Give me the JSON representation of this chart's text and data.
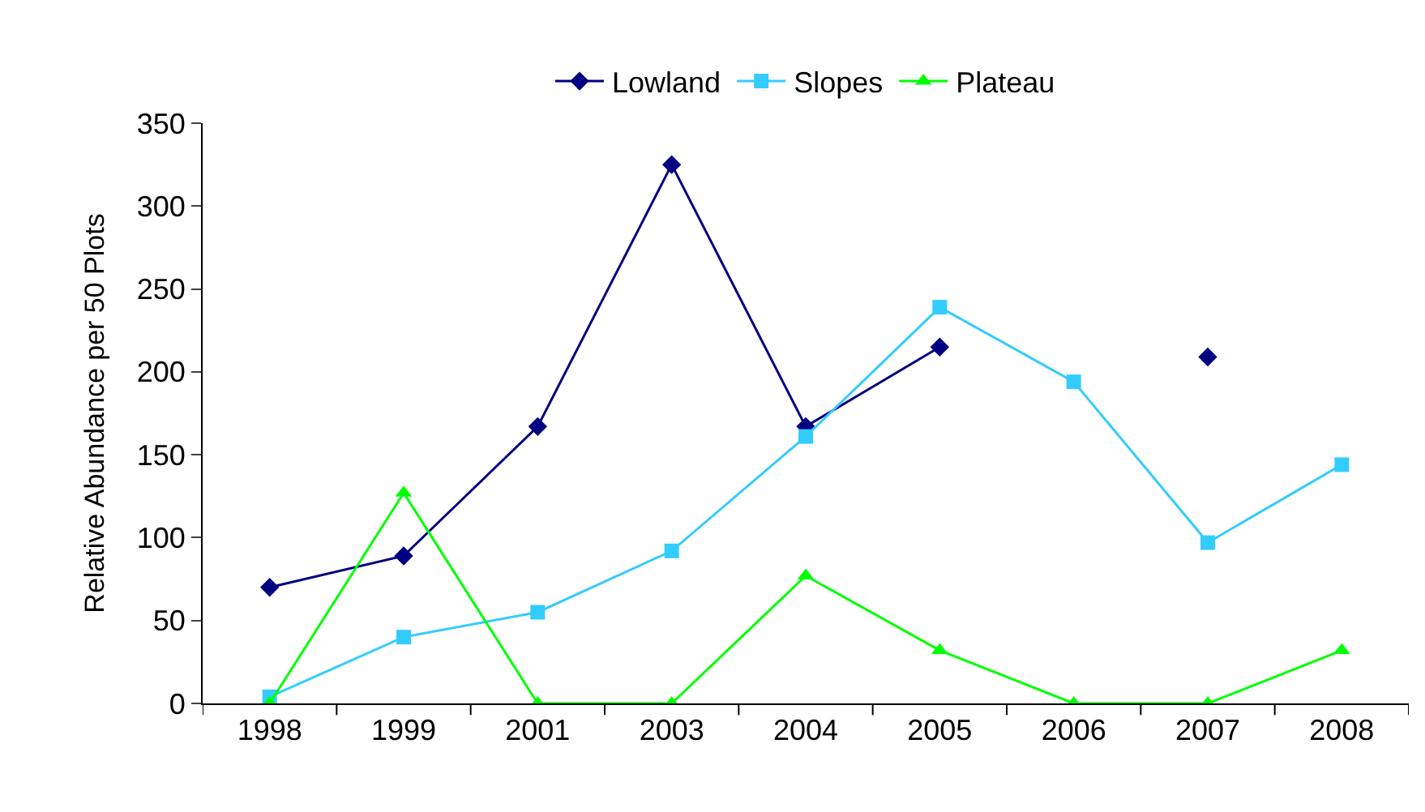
{
  "chart_data": {
    "type": "line",
    "ylabel": "Relative Abundance per 50 Plots",
    "categories": [
      "1998",
      "1999",
      "2001",
      "2003",
      "2004",
      "2005",
      "2006",
      "2007",
      "2008"
    ],
    "ylim": [
      0,
      350
    ],
    "yticks": [
      0,
      50,
      100,
      150,
      200,
      250,
      300,
      350
    ],
    "legend": "top",
    "line_style": "solid",
    "series": [
      {
        "name": "Lowland",
        "color": "#000080",
        "marker": "diamond",
        "values": [
          70,
          89,
          167,
          325,
          167,
          215,
          null,
          209,
          null
        ]
      },
      {
        "name": "Slopes",
        "color": "#33ccff",
        "marker": "square",
        "values": [
          4,
          40,
          55,
          92,
          161,
          239,
          194,
          97,
          144
        ]
      },
      {
        "name": "Plateau",
        "color": "#00ff00",
        "marker": "triangle",
        "values": [
          0,
          127,
          0,
          0,
          77,
          32,
          0,
          0,
          32
        ]
      }
    ]
  }
}
